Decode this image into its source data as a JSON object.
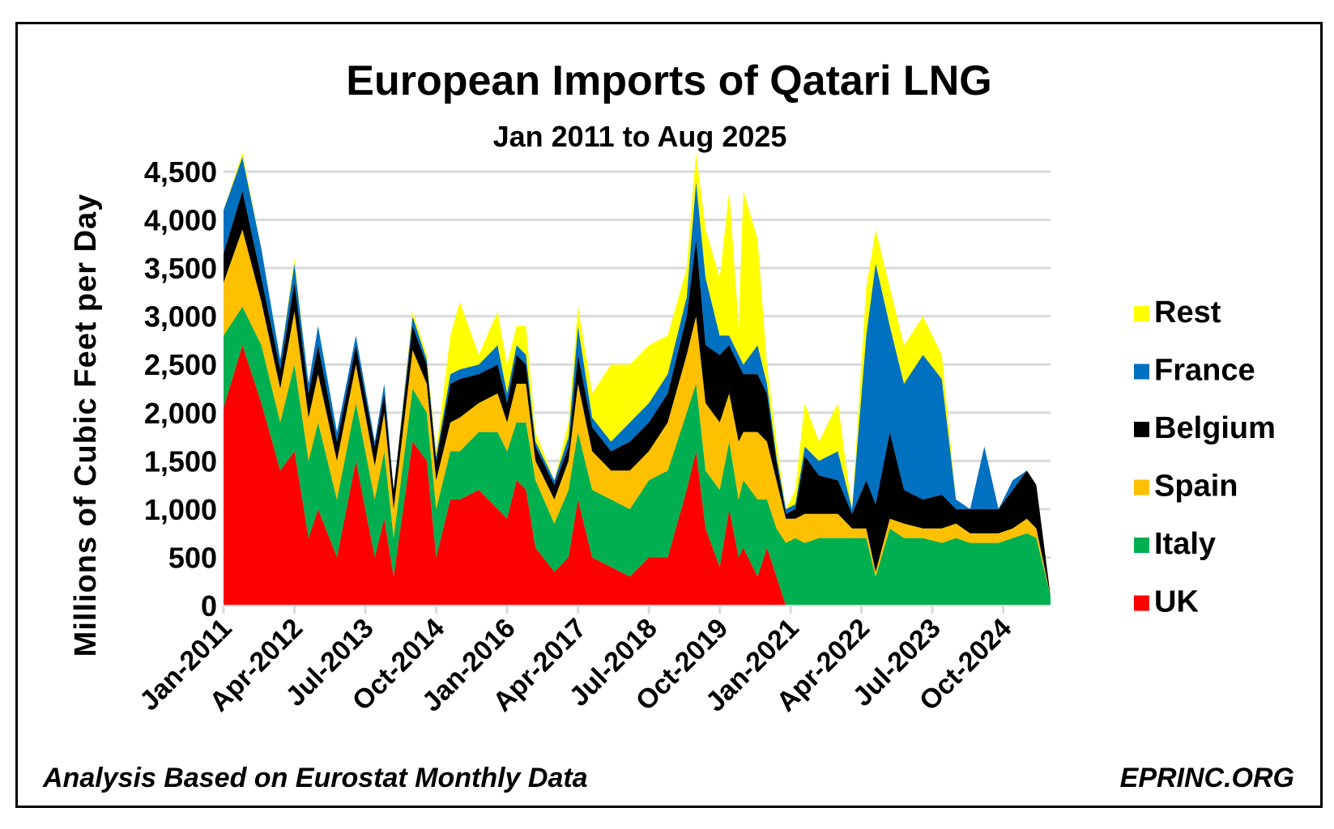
{
  "chart_data": {
    "type": "area",
    "stacked": true,
    "title": "European Imports of Qatari LNG",
    "subtitle": "Jan 2011 to Aug 2025",
    "ylabel": "Millions of Cubic Feet per Day",
    "xlabel": "",
    "ylim": [
      0,
      4500
    ],
    "yticks": [
      "0",
      "500",
      "1,000",
      "1,500",
      "2,000",
      "2,500",
      "3,000",
      "3,500",
      "4,000",
      "4,500"
    ],
    "ytick_values": [
      0,
      500,
      1000,
      1500,
      2000,
      2500,
      3000,
      3500,
      4000,
      4500
    ],
    "xticks": [
      "Jan-2011",
      "Apr-2012",
      "Jul-2013",
      "Oct-2014",
      "Jan-2016",
      "Apr-2017",
      "Jul-2018",
      "Oct-2019",
      "Jan-2021",
      "Apr-2022",
      "Jul-2023",
      "Oct-2024"
    ],
    "xtick_dates": [
      "2011-01",
      "2012-04",
      "2013-07",
      "2014-10",
      "2016-01",
      "2017-04",
      "2018-07",
      "2019-10",
      "2021-01",
      "2022-04",
      "2023-07",
      "2024-10"
    ],
    "xlim": [
      "2011-01",
      "2025-08"
    ],
    "grid": true,
    "legend_placement": "right",
    "x": [
      "2011-01",
      "2011-05",
      "2011-09",
      "2012-01",
      "2012-04",
      "2012-07",
      "2012-09",
      "2013-01",
      "2013-05",
      "2013-09",
      "2013-11",
      "2014-01",
      "2014-05",
      "2014-08",
      "2014-10",
      "2015-01",
      "2015-03",
      "2015-07",
      "2015-11",
      "2016-01",
      "2016-03",
      "2016-05",
      "2016-07",
      "2016-11",
      "2017-02",
      "2017-04",
      "2017-07",
      "2017-11",
      "2018-03",
      "2018-07",
      "2018-11",
      "2019-03",
      "2019-05",
      "2019-07",
      "2019-10",
      "2019-12",
      "2020-02",
      "2020-03",
      "2020-06",
      "2020-08",
      "2020-10",
      "2020-12",
      "2021-02",
      "2021-04",
      "2021-07",
      "2021-11",
      "2022-02",
      "2022-05",
      "2022-07",
      "2022-10",
      "2023-01",
      "2023-05",
      "2023-09",
      "2023-12",
      "2024-03",
      "2024-06",
      "2024-09",
      "2024-12",
      "2025-03",
      "2025-05",
      "2025-08"
    ],
    "series": [
      {
        "name": "UK",
        "color": "#ff0000",
        "values": [
          2050,
          2700,
          2100,
          1400,
          1600,
          700,
          1000,
          500,
          1500,
          500,
          900,
          300,
          1700,
          1500,
          500,
          1100,
          1100,
          1200,
          1000,
          900,
          1300,
          1200,
          600,
          350,
          500,
          1100,
          500,
          400,
          300,
          500,
          500,
          1200,
          1600,
          800,
          400,
          1000,
          500,
          600,
          300,
          600,
          300,
          0,
          0,
          0,
          0,
          0,
          0,
          0,
          0,
          0,
          0,
          0,
          0,
          0,
          0,
          0,
          0,
          0,
          0,
          0,
          0
        ]
      },
      {
        "name": "Italy",
        "color": "#00b050",
        "values": [
          750,
          400,
          600,
          500,
          900,
          800,
          900,
          600,
          600,
          600,
          700,
          400,
          550,
          500,
          500,
          500,
          500,
          600,
          800,
          700,
          600,
          700,
          700,
          500,
          700,
          700,
          700,
          700,
          700,
          800,
          900,
          800,
          700,
          600,
          800,
          700,
          600,
          700,
          800,
          500,
          500,
          650,
          700,
          650,
          700,
          700,
          700,
          700,
          300,
          800,
          700,
          700,
          650,
          700,
          650,
          650,
          650,
          700,
          750,
          700,
          100
        ]
      },
      {
        "name": "Spain",
        "color": "#ffc000",
        "values": [
          550,
          800,
          450,
          350,
          550,
          450,
          500,
          400,
          400,
          350,
          400,
          300,
          400,
          300,
          300,
          300,
          350,
          300,
          400,
          300,
          400,
          400,
          200,
          250,
          300,
          500,
          400,
          300,
          400,
          300,
          500,
          600,
          700,
          700,
          700,
          500,
          600,
          500,
          700,
          600,
          500,
          250,
          200,
          300,
          250,
          250,
          100,
          100,
          50,
          100,
          150,
          100,
          150,
          150,
          100,
          100,
          100,
          100,
          150,
          100,
          0
        ]
      },
      {
        "name": "Belgium",
        "color": "#000000",
        "values": [
          300,
          400,
          250,
          200,
          300,
          250,
          300,
          200,
          200,
          200,
          200,
          200,
          250,
          200,
          200,
          400,
          400,
          300,
          300,
          200,
          300,
          200,
          150,
          150,
          150,
          300,
          250,
          200,
          300,
          300,
          300,
          400,
          800,
          600,
          700,
          500,
          800,
          600,
          600,
          500,
          200,
          50,
          100,
          600,
          400,
          350,
          150,
          500,
          700,
          900,
          350,
          300,
          350,
          150,
          250,
          250,
          250,
          400,
          500,
          450,
          0
        ]
      },
      {
        "name": "France",
        "color": "#0070c0",
        "values": [
          450,
          350,
          300,
          100,
          200,
          100,
          200,
          100,
          100,
          50,
          100,
          0,
          100,
          50,
          50,
          100,
          100,
          100,
          200,
          100,
          100,
          100,
          50,
          50,
          100,
          300,
          100,
          100,
          200,
          200,
          200,
          200,
          600,
          700,
          200,
          100,
          100,
          100,
          300,
          100,
          50,
          50,
          50,
          100,
          150,
          300,
          50,
          1500,
          2500,
          1100,
          1100,
          1500,
          1200,
          100,
          0,
          650,
          0,
          100,
          0,
          0,
          0
        ]
      },
      {
        "name": "Rest",
        "color": "#ffff00",
        "values": [
          0,
          50,
          0,
          0,
          50,
          0,
          0,
          0,
          0,
          0,
          0,
          0,
          50,
          50,
          50,
          400,
          700,
          100,
          350,
          300,
          200,
          300,
          100,
          0,
          150,
          200,
          250,
          800,
          600,
          600,
          400,
          300,
          300,
          500,
          600,
          1500,
          300,
          1800,
          1100,
          200,
          150,
          0,
          150,
          450,
          200,
          500,
          0,
          500,
          350,
          400,
          400,
          400,
          250,
          0,
          0,
          0,
          0,
          0,
          0,
          0,
          0
        ]
      }
    ],
    "legend_order": [
      "Rest",
      "France",
      "Belgium",
      "Spain",
      "Italy",
      "UK"
    ],
    "annotations": {
      "source": "Analysis Based on Eurostat Monthly Data",
      "credit": "EPRINC.ORG"
    }
  }
}
